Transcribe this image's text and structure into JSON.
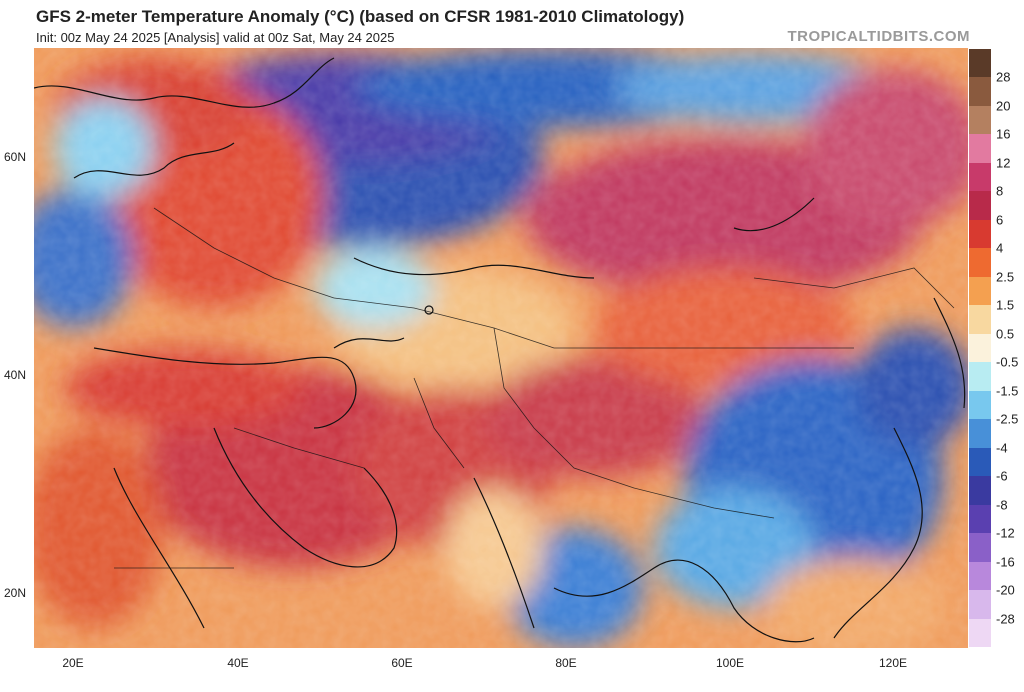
{
  "header": {
    "title": "GFS 2-meter Temperature Anomaly (°C) (based on CFSR 1981-2010 Climatology)",
    "subtitle": "Init: 00z May 24 2025   [Analysis]   valid at 00z Sat, May 24 2025",
    "credit": "TROPICALTIDBITS.COM"
  },
  "axes": {
    "lat_labels": [
      "60N",
      "40N",
      "20N"
    ],
    "lon_labels": [
      "20E",
      "40E",
      "60E",
      "80E",
      "100E",
      "120E"
    ]
  },
  "colorbar": {
    "labels": [
      "28",
      "20",
      "16",
      "12",
      "8",
      "6",
      "4",
      "2.5",
      "1.5",
      "0.5",
      "-0.5",
      "-1.5",
      "-2.5",
      "-4",
      "-6",
      "-8",
      "-12",
      "-16",
      "-20",
      "-28"
    ],
    "colors": [
      "#5a3a28",
      "#8a5a3e",
      "#b48060",
      "#e27aa0",
      "#c83a6a",
      "#b82a4a",
      "#d83a30",
      "#ee6a30",
      "#f4a050",
      "#f8d8a0",
      "#fbf2dc",
      "#b8ecf2",
      "#78c8ee",
      "#4890d8",
      "#2a5ab8",
      "#3a3aa0",
      "#5a40b0",
      "#8a60c8",
      "#b888dc",
      "#d8b8ec",
      "#eed8f4"
    ]
  }
}
